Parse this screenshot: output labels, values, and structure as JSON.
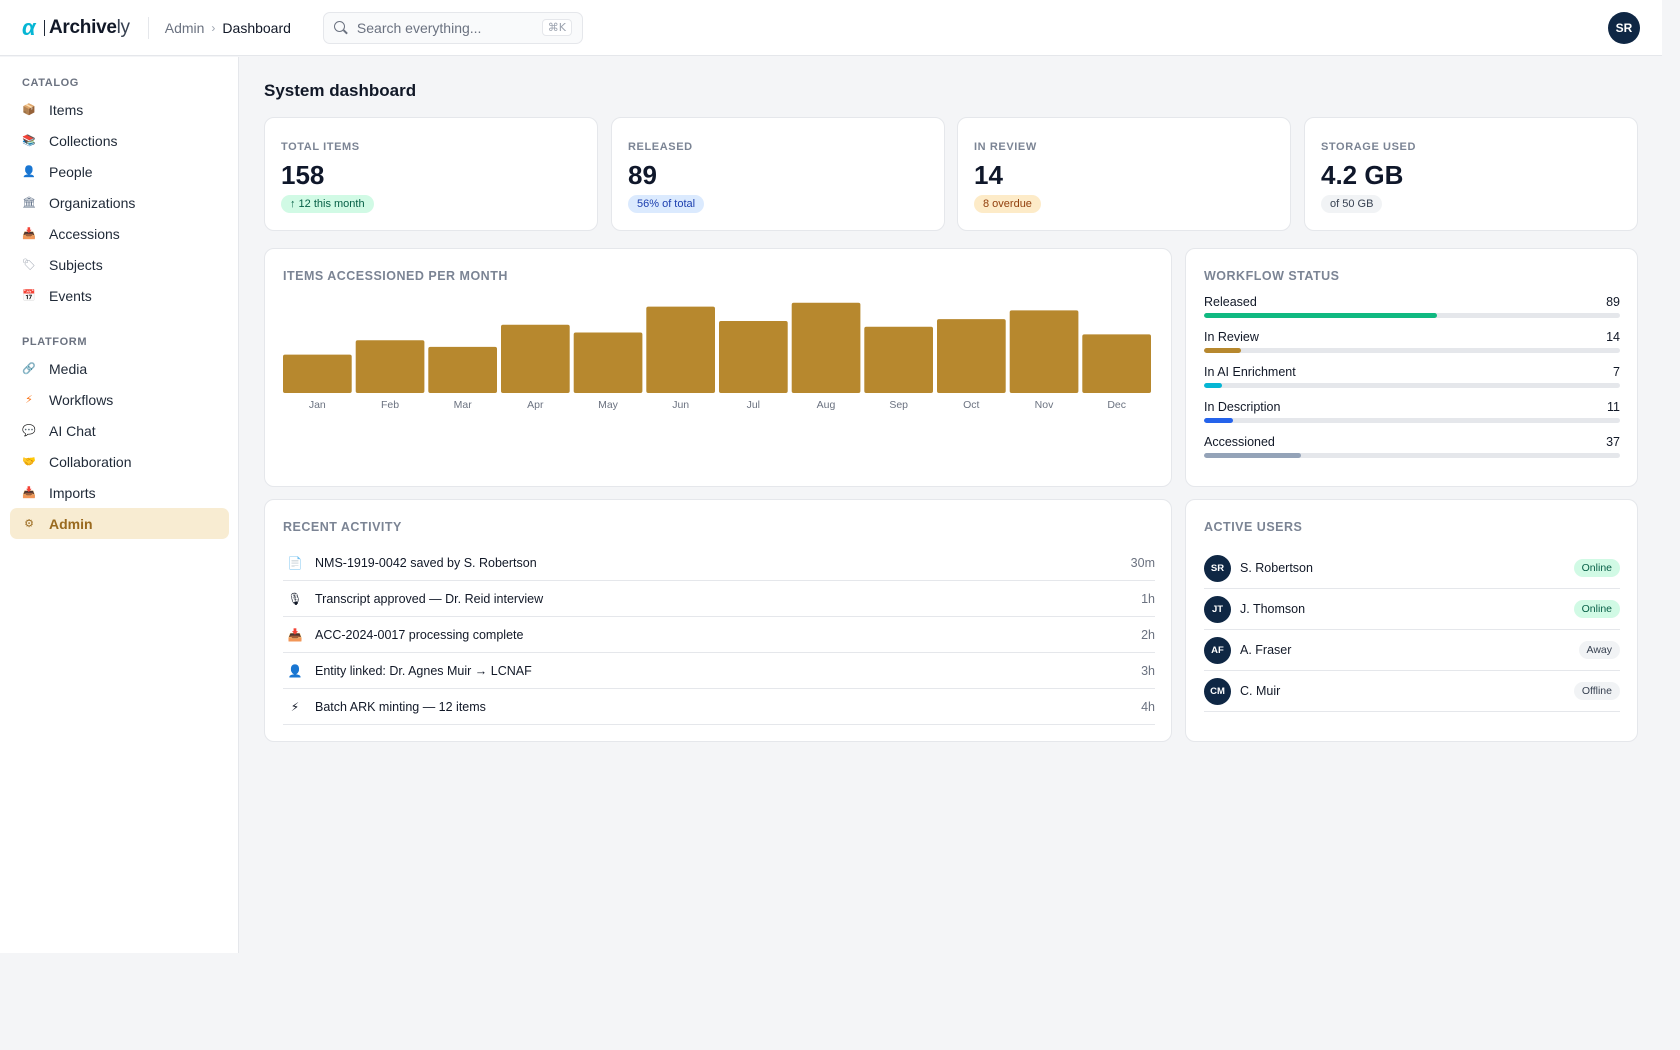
{
  "app": {
    "logo_text": "Archive",
    "logo_suffix": "ly",
    "logo_mark": "α"
  },
  "header": {
    "breadcrumb_parent": "Admin",
    "breadcrumb_current": "Dashboard",
    "search_placeholder": "Search everything...",
    "search_shortcut": "⌘K",
    "user_initials": "SR"
  },
  "sidebar": {
    "sections": [
      {
        "title": "CATALOG",
        "items": [
          {
            "label": "Items",
            "icon": "package-icon",
            "glyph": "📦",
            "color": "#b45309"
          },
          {
            "label": "Collections",
            "icon": "books-icon",
            "glyph": "📚",
            "color": "#16a34a"
          },
          {
            "label": "People",
            "icon": "person-icon",
            "glyph": "👤",
            "color": "#4c1d95"
          },
          {
            "label": "Organizations",
            "icon": "building-icon",
            "glyph": "🏛",
            "color": "#64748b"
          },
          {
            "label": "Accessions",
            "icon": "inbox-tray-icon",
            "glyph": "📥",
            "color": "#2563eb"
          },
          {
            "label": "Subjects",
            "icon": "tag-icon",
            "glyph": "🏷",
            "color": "#9ca3af"
          },
          {
            "label": "Events",
            "icon": "calendar-icon",
            "glyph": "📅",
            "color": "#2563eb"
          }
        ]
      },
      {
        "title": "PLATFORM",
        "items": [
          {
            "label": "Media",
            "icon": "link-icon",
            "glyph": "🔗",
            "color": "#9ca3af"
          },
          {
            "label": "Workflows",
            "icon": "lightning-icon",
            "glyph": "⚡",
            "color": "#f97316"
          },
          {
            "label": "AI Chat",
            "icon": "speech-bubble-icon",
            "glyph": "💬",
            "color": "#a78bfa"
          },
          {
            "label": "Collaboration",
            "icon": "handshake-icon",
            "glyph": "🤝",
            "color": "#f59e0b"
          },
          {
            "label": "Imports",
            "icon": "inbox-tray-icon",
            "glyph": "📥",
            "color": "#2563eb"
          },
          {
            "label": "Admin",
            "icon": "gear-icon",
            "glyph": "⚙",
            "color": "#9a6a1f",
            "active": true
          }
        ]
      }
    ]
  },
  "page": {
    "title": "System dashboard"
  },
  "stats": [
    {
      "label": "TOTAL ITEMS",
      "value": "158",
      "pill": "↑ 12 this month",
      "tone": "green"
    },
    {
      "label": "RELEASED",
      "value": "89",
      "pill": "56% of total",
      "tone": "blue"
    },
    {
      "label": "IN REVIEW",
      "value": "14",
      "pill": "8 overdue",
      "tone": "amber"
    },
    {
      "label": "STORAGE USED",
      "value": "4.2 GB",
      "pill": "of 50 GB",
      "tone": "gray"
    }
  ],
  "chart_data": {
    "type": "bar",
    "title": "ITEMS ACCESSIONED PER MONTH",
    "categories": [
      "Jan",
      "Feb",
      "Mar",
      "Apr",
      "May",
      "Jun",
      "Jul",
      "Aug",
      "Sep",
      "Oct",
      "Nov",
      "Dec"
    ],
    "values": [
      40,
      55,
      48,
      71,
      63,
      90,
      75,
      94,
      69,
      77,
      86,
      61
    ],
    "ylim": [
      0,
      100
    ],
    "color": "#b7882e",
    "grid": false,
    "legend": "none"
  },
  "workflow": {
    "title": "WORKFLOW STATUS",
    "rows": [
      {
        "label": "Released",
        "value": "89",
        "fraction": 0.56,
        "color": "#10b981"
      },
      {
        "label": "In Review",
        "value": "14",
        "fraction": 0.089,
        "color": "#b7882e"
      },
      {
        "label": "In AI Enrichment",
        "value": "7",
        "fraction": 0.044,
        "color": "#06b6d4"
      },
      {
        "label": "In Description",
        "value": "11",
        "fraction": 0.07,
        "color": "#2563eb"
      },
      {
        "label": "Accessioned",
        "value": "37",
        "fraction": 0.234,
        "color": "#94a3b8"
      }
    ]
  },
  "activity": {
    "title": "RECENT ACTIVITY",
    "rows": [
      {
        "text": "NMS-1919-0042 saved by S. Robertson",
        "time": "30m",
        "icon": "document-icon",
        "glyph": "📄"
      },
      {
        "text": "Transcript approved — Dr. Reid interview",
        "time": "1h",
        "icon": "microphone-icon",
        "glyph": "🎙"
      },
      {
        "text": "ACC-2024-0017 processing complete",
        "time": "2h",
        "icon": "inbox-tray-icon",
        "glyph": "📥"
      },
      {
        "text": "Entity linked: Dr. Agnes Muir → LCNAF",
        "time": "3h",
        "icon": "person-icon",
        "glyph": "👤"
      },
      {
        "text": "Batch ARK minting — 12 items",
        "time": "4h",
        "icon": "lightning-icon",
        "glyph": "⚡"
      }
    ]
  },
  "users": {
    "title": "ACTIVE USERS",
    "rows": [
      {
        "initials": "SR",
        "name": "S. Robertson",
        "status": "Online",
        "tone": "online"
      },
      {
        "initials": "JT",
        "name": "J. Thomson",
        "status": "Online",
        "tone": "online"
      },
      {
        "initials": "AF",
        "name": "A. Fraser",
        "status": "Away",
        "tone": "away"
      },
      {
        "initials": "CM",
        "name": "C. Muir",
        "status": "Offline",
        "tone": "offline"
      }
    ]
  }
}
